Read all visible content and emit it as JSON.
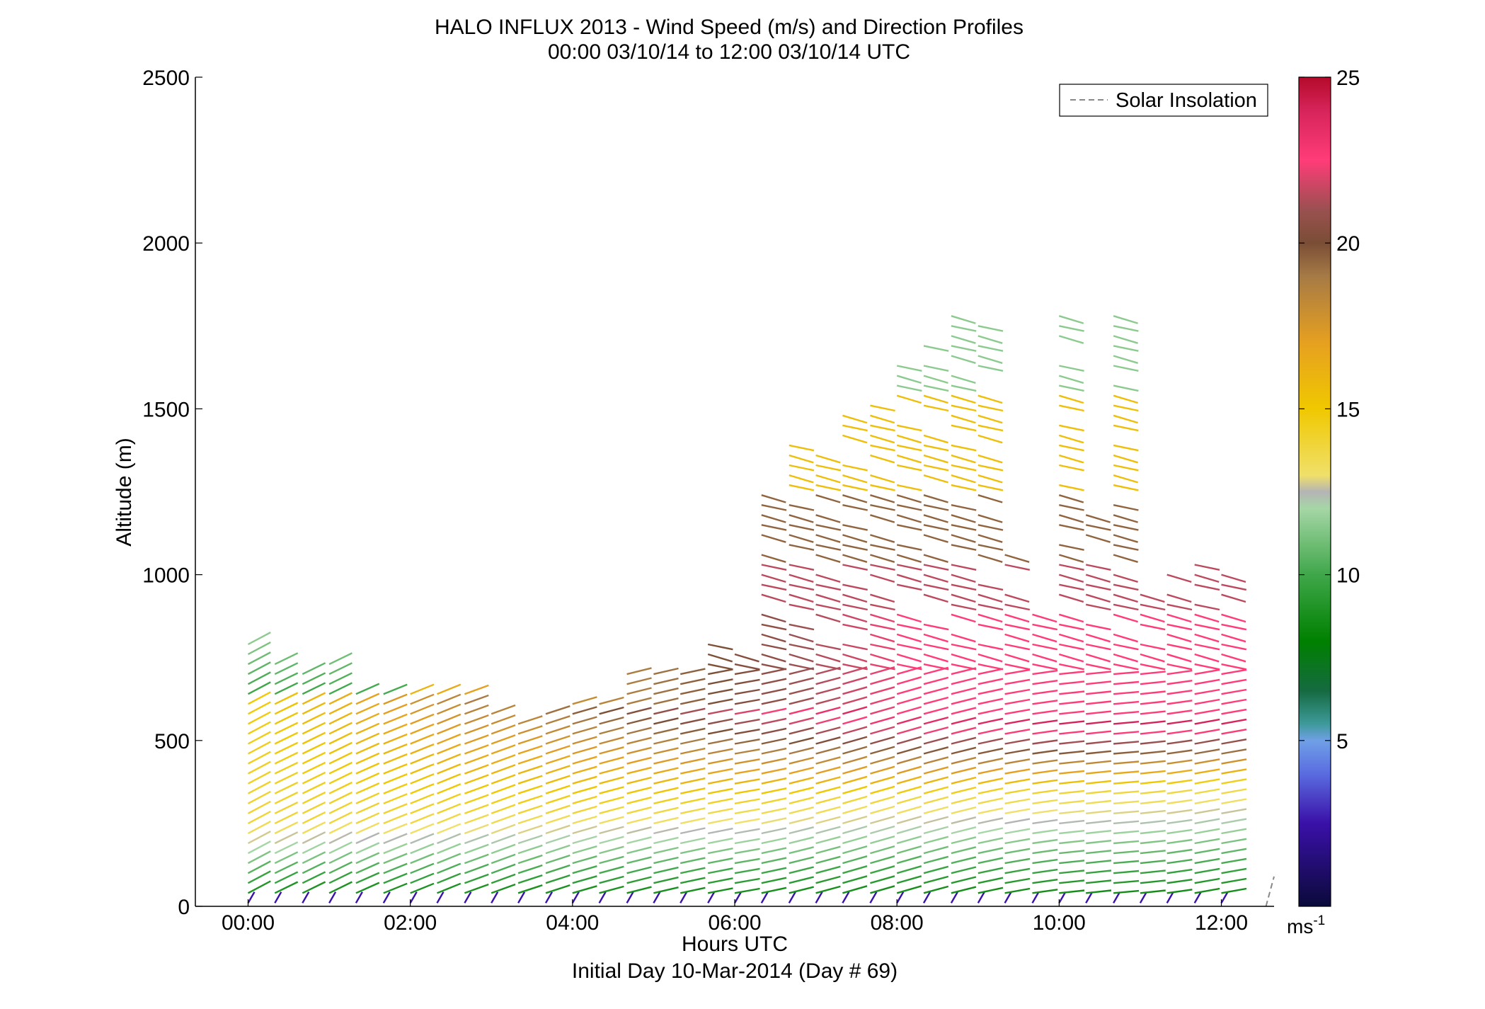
{
  "chart_data": {
    "type": "wind-barb-profile",
    "title": "HALO INFLUX 2013 - Wind Speed (m/s) and Direction Profiles",
    "subtitle": "00:00 03/10/14 to 12:00 03/10/14  UTC",
    "xlabel": "Hours UTC",
    "xlabel2": "Initial Day 10-Mar-2014 (Day # 69)",
    "ylabel": "Altitude (m)",
    "xlim": [
      -0.65,
      12.65
    ],
    "ylim": [
      0,
      2500
    ],
    "xticks": [
      0,
      2,
      4,
      6,
      8,
      10,
      12
    ],
    "xtick_labels": [
      "00:00",
      "02:00",
      "04:00",
      "06:00",
      "08:00",
      "10:00",
      "12:00"
    ],
    "yticks": [
      0,
      500,
      1000,
      1500,
      2000,
      2500
    ],
    "ytick_labels": [
      "0",
      "500",
      "1000",
      "1500",
      "2000",
      "2500"
    ],
    "legend": {
      "entries": [
        "Solar Insolation"
      ],
      "line_style": "dashed",
      "color": "#888888",
      "placement": "top-right"
    },
    "colorbar": {
      "range": [
        0,
        25
      ],
      "ticks": [
        5,
        10,
        15,
        20,
        25
      ],
      "tick_labels": [
        "5",
        "10",
        "15",
        "20",
        "25"
      ],
      "unit_base": "ms",
      "unit_exp": "-1",
      "stops": [
        {
          "v": 0,
          "c": "#0a0a3a"
        },
        {
          "v": 2.5,
          "c": "#3a10a8"
        },
        {
          "v": 4.0,
          "c": "#5a6ce0"
        },
        {
          "v": 5.0,
          "c": "#6fa0e6"
        },
        {
          "v": 5.5,
          "c": "#3e9a9a"
        },
        {
          "v": 6.5,
          "c": "#156a40"
        },
        {
          "v": 8.0,
          "c": "#008000"
        },
        {
          "v": 10.0,
          "c": "#3fa74a"
        },
        {
          "v": 12.0,
          "c": "#a6d6a6"
        },
        {
          "v": 12.5,
          "c": "#b4b4b4"
        },
        {
          "v": 13.0,
          "c": "#f0e06a"
        },
        {
          "v": 15.0,
          "c": "#f0c800"
        },
        {
          "v": 17.0,
          "c": "#e6a020"
        },
        {
          "v": 19.0,
          "c": "#a67a45"
        },
        {
          "v": 20.0,
          "c": "#7a4e36"
        },
        {
          "v": 21.0,
          "c": "#9a5050"
        },
        {
          "v": 22.5,
          "c": "#ff3c78"
        },
        {
          "v": 24.0,
          "c": "#d6245a"
        },
        {
          "v": 25.0,
          "c": "#b40a2a"
        }
      ]
    },
    "solar_insolation": {
      "x": [
        12.55,
        12.65
      ],
      "y": [
        0,
        90
      ]
    },
    "profiles": [
      {
        "t": 0.0,
        "top": 790,
        "dir": -28
      },
      {
        "t": 0.33,
        "top": 730,
        "dir": -26
      },
      {
        "t": 0.67,
        "top": 720,
        "dir": -26
      },
      {
        "t": 1.0,
        "top": 730,
        "dir": -26
      },
      {
        "t": 1.33,
        "top": 660,
        "dir": -24
      },
      {
        "t": 1.67,
        "top": 650,
        "dir": -22
      },
      {
        "t": 2.0,
        "top": 660,
        "dir": -22
      },
      {
        "t": 2.33,
        "top": 660,
        "dir": -22
      },
      {
        "t": 2.67,
        "top": 640,
        "dir": -20
      },
      {
        "t": 3.0,
        "top": 590,
        "dir": -20
      },
      {
        "t": 3.33,
        "top": 560,
        "dir": -18
      },
      {
        "t": 3.67,
        "top": 590,
        "dir": -18
      },
      {
        "t": 4.0,
        "top": 620,
        "dir": -16
      },
      {
        "t": 4.33,
        "top": 620,
        "dir": -15
      },
      {
        "t": 4.67,
        "top": 720,
        "dir": -14
      },
      {
        "t": 5.0,
        "top": 720,
        "dir": -13
      },
      {
        "t": 5.33,
        "top": 700,
        "dir": -12
      },
      {
        "t": 5.67,
        "top": 790,
        "dir": -11
      },
      {
        "t": 6.0,
        "top": 760,
        "dir": -10
      },
      {
        "t": 6.33,
        "top": 1260,
        "dir": -12
      },
      {
        "t": 6.67,
        "top": 1410,
        "dir": -14
      },
      {
        "t": 7.0,
        "top": 1360,
        "dir": -15
      },
      {
        "t": 7.33,
        "top": 1480,
        "dir": -16
      },
      {
        "t": 7.67,
        "top": 1540,
        "dir": -16
      },
      {
        "t": 8.0,
        "top": 1630,
        "dir": -16
      },
      {
        "t": 8.33,
        "top": 1710,
        "dir": -15
      },
      {
        "t": 8.67,
        "top": 1790,
        "dir": -14
      },
      {
        "t": 9.0,
        "top": 1780,
        "dir": -12
      },
      {
        "t": 9.33,
        "top": 1080,
        "dir": -10
      },
      {
        "t": 9.67,
        "top": 880,
        "dir": -8
      },
      {
        "t": 10.0,
        "top": 1780,
        "dir": -6
      },
      {
        "t": 10.33,
        "top": 1190,
        "dir": -6
      },
      {
        "t": 10.67,
        "top": 1780,
        "dir": -5
      },
      {
        "t": 11.0,
        "top": 950,
        "dir": -6
      },
      {
        "t": 11.33,
        "top": 1020,
        "dir": -8
      },
      {
        "t": 11.67,
        "top": 1030,
        "dir": -10
      },
      {
        "t": 12.0,
        "top": 1010,
        "dir": -10
      }
    ]
  }
}
